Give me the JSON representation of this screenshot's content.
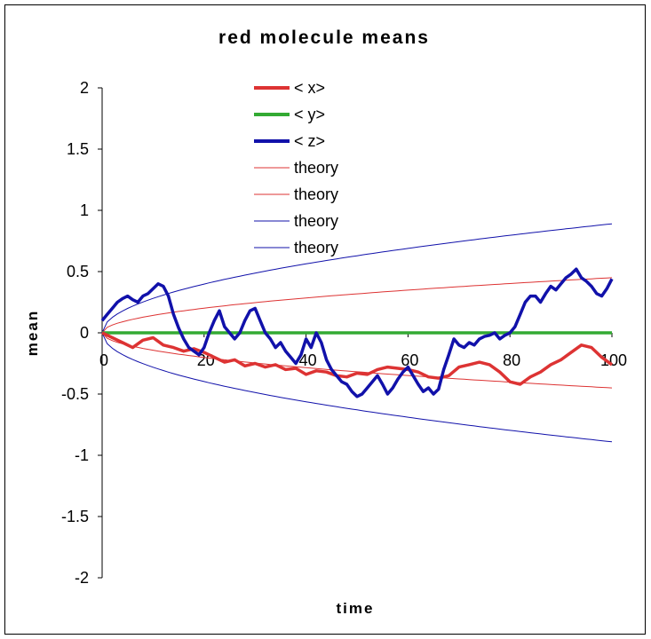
{
  "chart_data": {
    "type": "line",
    "title": "red molecule means",
    "xlabel": "time",
    "ylabel": "mean",
    "xlim": [
      0,
      100
    ],
    "ylim": [
      -2,
      2
    ],
    "x_ticks": [
      "0",
      "20",
      "40",
      "60",
      "80",
      "100"
    ],
    "y_ticks": [
      "2",
      "1.5",
      "1",
      "0.5",
      "0",
      "-0.5",
      "-1",
      "-1.5",
      "-2"
    ],
    "grid": false,
    "legend_position": "top-center",
    "series": [
      {
        "name": "< x>",
        "color": "#dd3333",
        "style": "thick",
        "x": [
          0,
          2,
          4,
          6,
          8,
          10,
          12,
          14,
          16,
          18,
          20,
          22,
          24,
          26,
          28,
          30,
          32,
          34,
          36,
          38,
          40,
          42,
          44,
          46,
          48,
          50,
          52,
          54,
          56,
          58,
          60,
          62,
          64,
          66,
          68,
          70,
          72,
          74,
          76,
          78,
          80,
          82,
          84,
          86,
          88,
          90,
          92,
          94,
          96,
          98,
          100
        ],
        "values": [
          0,
          -0.04,
          -0.08,
          -0.12,
          -0.06,
          -0.04,
          -0.1,
          -0.12,
          -0.15,
          -0.13,
          -0.16,
          -0.2,
          -0.24,
          -0.22,
          -0.27,
          -0.25,
          -0.28,
          -0.26,
          -0.3,
          -0.29,
          -0.34,
          -0.31,
          -0.32,
          -0.35,
          -0.36,
          -0.33,
          -0.34,
          -0.3,
          -0.28,
          -0.29,
          -0.3,
          -0.32,
          -0.36,
          -0.37,
          -0.35,
          -0.28,
          -0.26,
          -0.24,
          -0.26,
          -0.32,
          -0.4,
          -0.42,
          -0.36,
          -0.32,
          -0.26,
          -0.22,
          -0.16,
          -0.1,
          -0.12,
          -0.2,
          -0.26
        ]
      },
      {
        "name": "< y>",
        "color": "#33aa33",
        "style": "thick",
        "x": [
          0,
          100
        ],
        "values": [
          0,
          0
        ]
      },
      {
        "name": "< z>",
        "color": "#1111aa",
        "style": "thick",
        "x": [
          0,
          1,
          2,
          3,
          4,
          5,
          6,
          7,
          8,
          9,
          10,
          11,
          12,
          13,
          14,
          15,
          16,
          17,
          18,
          19,
          20,
          21,
          22,
          23,
          24,
          25,
          26,
          27,
          28,
          29,
          30,
          31,
          32,
          33,
          34,
          35,
          36,
          37,
          38,
          39,
          40,
          41,
          42,
          43,
          44,
          45,
          46,
          47,
          48,
          49,
          50,
          51,
          52,
          53,
          54,
          55,
          56,
          57,
          58,
          59,
          60,
          61,
          62,
          63,
          64,
          65,
          66,
          67,
          68,
          69,
          70,
          71,
          72,
          73,
          74,
          75,
          76,
          77,
          78,
          79,
          80,
          81,
          82,
          83,
          84,
          85,
          86,
          87,
          88,
          89,
          90,
          91,
          92,
          93,
          94,
          95,
          96,
          97,
          98,
          99,
          100
        ],
        "values": [
          0.1,
          0.15,
          0.2,
          0.25,
          0.28,
          0.3,
          0.27,
          0.25,
          0.3,
          0.32,
          0.36,
          0.4,
          0.38,
          0.3,
          0.15,
          0.04,
          -0.05,
          -0.12,
          -0.15,
          -0.18,
          -0.12,
          0.0,
          0.1,
          0.18,
          0.05,
          0.0,
          -0.05,
          0.0,
          0.1,
          0.18,
          0.2,
          0.1,
          0.0,
          -0.05,
          -0.12,
          -0.08,
          -0.15,
          -0.2,
          -0.25,
          -0.18,
          -0.05,
          -0.12,
          0.0,
          -0.08,
          -0.22,
          -0.3,
          -0.35,
          -0.4,
          -0.42,
          -0.48,
          -0.52,
          -0.5,
          -0.45,
          -0.4,
          -0.35,
          -0.42,
          -0.5,
          -0.45,
          -0.38,
          -0.32,
          -0.28,
          -0.35,
          -0.42,
          -0.48,
          -0.45,
          -0.5,
          -0.46,
          -0.3,
          -0.18,
          -0.05,
          -0.1,
          -0.12,
          -0.08,
          -0.1,
          -0.05,
          -0.03,
          -0.02,
          0.0,
          -0.05,
          -0.02,
          0.0,
          0.05,
          0.15,
          0.25,
          0.3,
          0.3,
          0.25,
          0.32,
          0.38,
          0.35,
          0.4,
          0.45,
          0.48,
          0.52,
          0.45,
          0.42,
          0.38,
          0.32,
          0.3,
          0.36,
          0.44
        ]
      },
      {
        "name": "theory",
        "color": "#dd3333",
        "style": "thin",
        "function": "0.045*sqrt(t)"
      },
      {
        "name": "theory",
        "color": "#dd3333",
        "style": "thin",
        "function": "-0.045*sqrt(t)"
      },
      {
        "name": "theory",
        "color": "#1111aa",
        "style": "thin",
        "function": "0.089*sqrt(t)"
      },
      {
        "name": "theory",
        "color": "#1111aa",
        "style": "thin",
        "function": "-0.089*sqrt(t)"
      }
    ]
  }
}
